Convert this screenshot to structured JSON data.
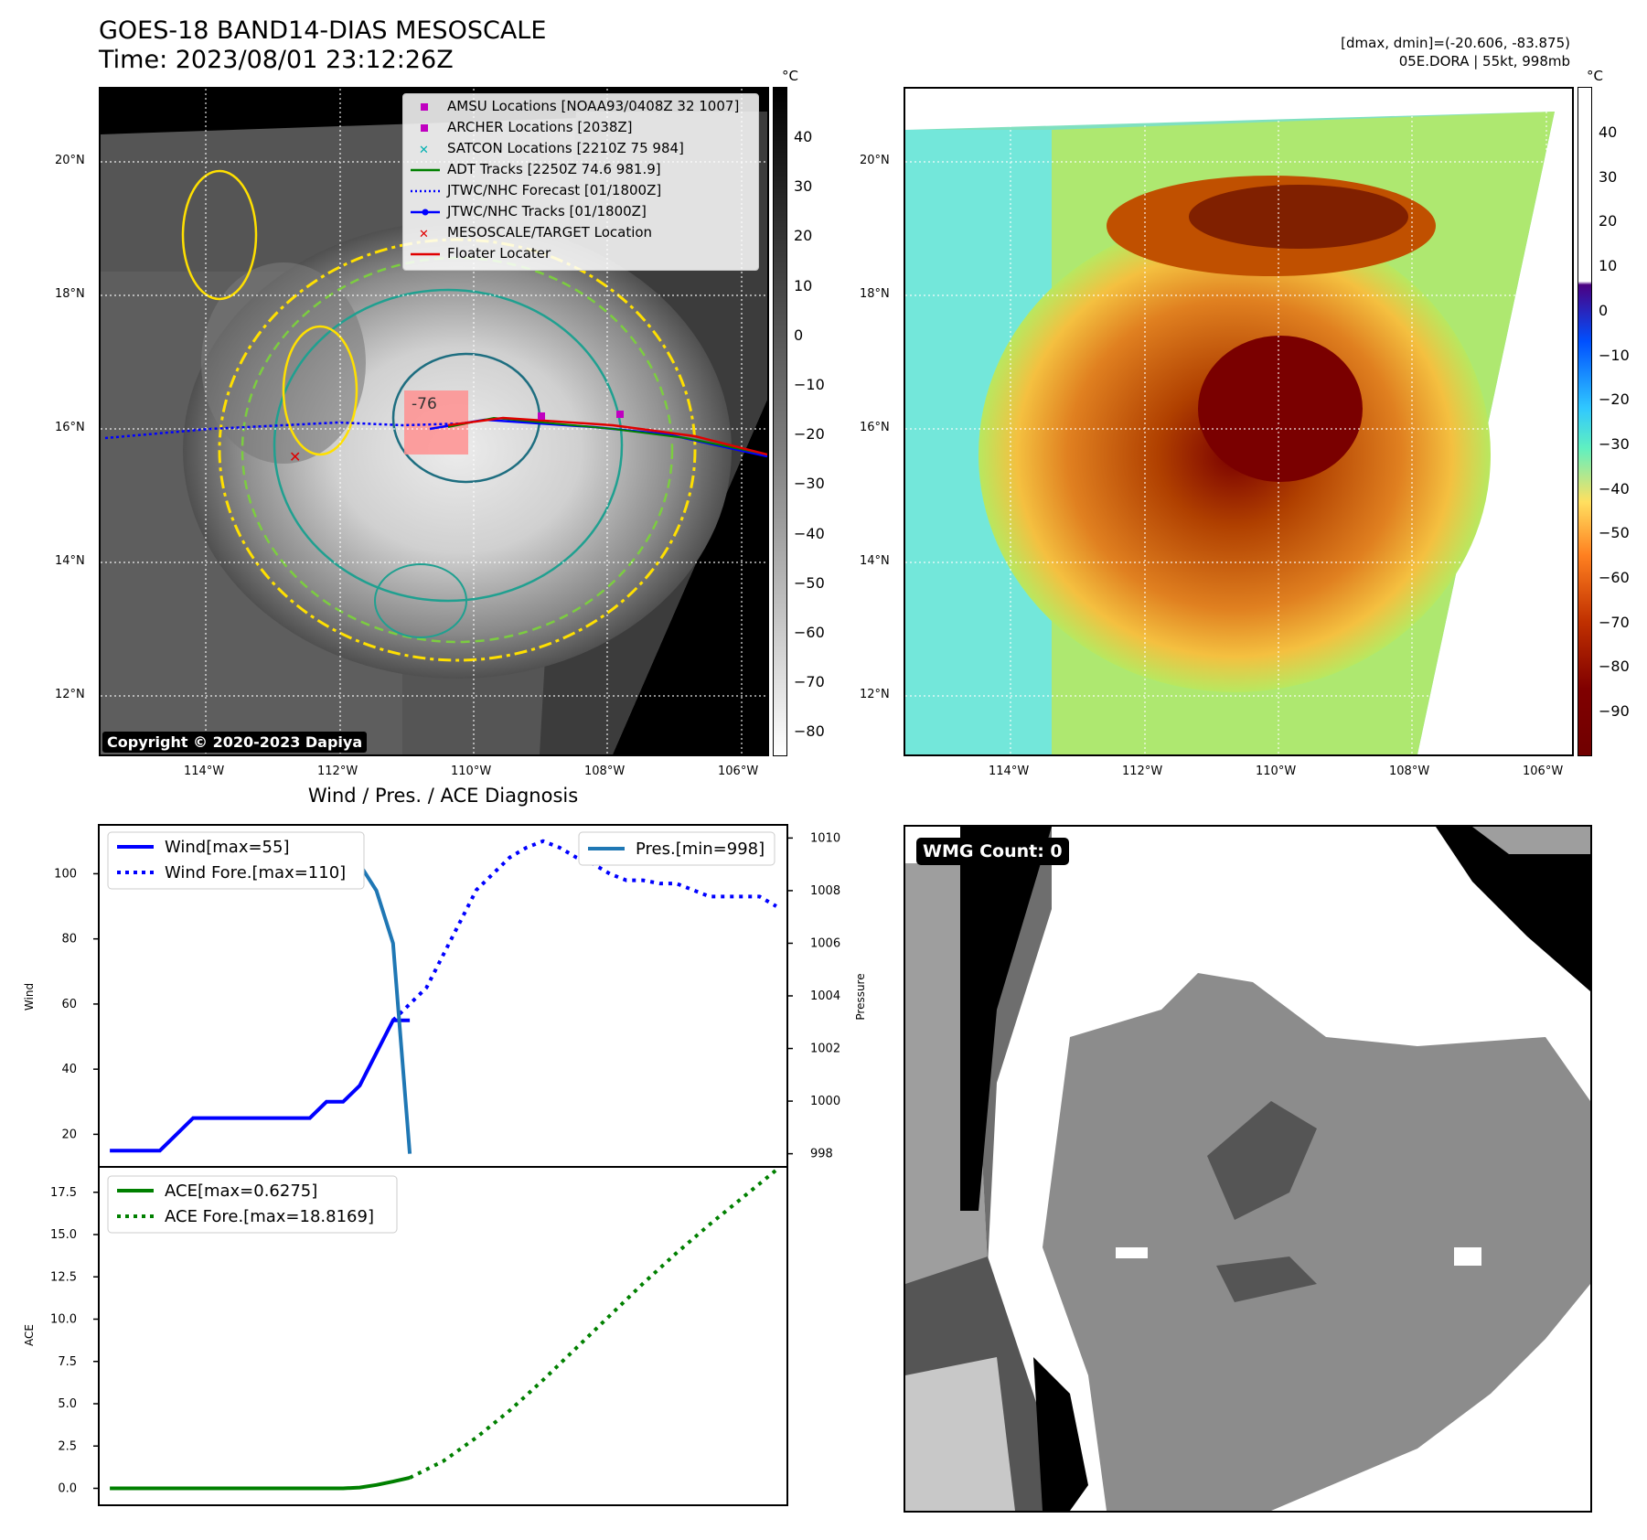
{
  "header": {
    "title_line1": "GOES-18 BAND14-DIAS MESOSCALE",
    "title_line2": "Time: 2023/08/01 23:12:26Z",
    "right_line1": "[dmax, dmin]=(-20.606, -83.875)",
    "right_line2": "05E.DORA | 55kt, 998mb"
  },
  "map_axes": {
    "lat_labels": [
      "20°N",
      "18°N",
      "16°N",
      "14°N",
      "12°N"
    ],
    "lon_labels": [
      "114°W",
      "112°W",
      "110°W",
      "108°W",
      "106°W"
    ],
    "contour_label": "-76"
  },
  "left_map": {
    "copyright": "Copyright © 2020-2023 Dapiya",
    "legend": [
      {
        "label": "AMSU Locations [NOAA93/0408Z 32 1007]",
        "color": "#c000c0",
        "marker": "square"
      },
      {
        "label": "ARCHER Locations [2038Z]",
        "color": "#c000c0",
        "marker": "square"
      },
      {
        "label": "SATCON Locations [2210Z 75 984]",
        "color": "#00b0b0",
        "marker": "x"
      },
      {
        "label": "ADT Tracks [2250Z 74.6 981.9]",
        "color": "#008000",
        "marker": "line"
      },
      {
        "label": "JTWC/NHC Forecast [01/1800Z]",
        "color": "#0000ff",
        "marker": "dotted"
      },
      {
        "label": "JTWC/NHC Tracks [01/1800Z]",
        "color": "#0000ff",
        "marker": "line-dot"
      },
      {
        "label": "MESOSCALE/TARGET Location",
        "color": "#e00000",
        "marker": "x"
      },
      {
        "label": "Floater Locater",
        "color": "#e00000",
        "marker": "line"
      }
    ]
  },
  "left_colorbar": {
    "unit": "°C",
    "ticks": [
      "40",
      "30",
      "20",
      "10",
      "0",
      "−10",
      "−20",
      "−30",
      "−40",
      "−50",
      "−60",
      "−70",
      "−80"
    ]
  },
  "right_colorbar": {
    "unit": "°C",
    "ticks": [
      "40",
      "30",
      "20",
      "10",
      "0",
      "−10",
      "−20",
      "−30",
      "−40",
      "−50",
      "−60",
      "−70",
      "−80",
      "−90"
    ]
  },
  "wmg": {
    "label": "WMG Count: 0"
  },
  "chart_data": {
    "type": "line",
    "title": "Wind / Pres. / ACE Diagnosis",
    "wind": {
      "ylabel": "Wind",
      "yticks": [
        "100",
        "80",
        "60",
        "40",
        "20"
      ],
      "ylim": [
        10,
        115
      ],
      "y2label": "Pressure",
      "y2ticks": [
        "1010",
        "1008",
        "1006",
        "1004",
        "1002",
        "1000",
        "998"
      ],
      "y2lim": [
        997.5,
        1010.5
      ],
      "series": [
        {
          "name": "Wind[max=55]",
          "style": "solid",
          "color": "#0000ff",
          "x": [
            0,
            3,
            6,
            9,
            12,
            15,
            18,
            21,
            24,
            27,
            30,
            33,
            36,
            39,
            42,
            45,
            48,
            51,
            54
          ],
          "values": [
            15,
            15,
            15,
            15,
            20,
            25,
            25,
            25,
            25,
            25,
            25,
            25,
            25,
            30,
            30,
            35,
            45,
            55,
            55
          ]
        },
        {
          "name": "Wind Fore.[max=110]",
          "style": "dotted",
          "color": "#0000ff",
          "x": [
            51,
            54,
            57,
            60,
            63,
            66,
            69,
            72,
            75,
            78,
            81,
            84,
            87,
            90,
            93,
            96,
            99,
            102,
            105,
            108,
            111,
            114,
            117,
            120
          ],
          "values": [
            55,
            60,
            65,
            75,
            85,
            95,
            100,
            105,
            108,
            110,
            108,
            105,
            103,
            100,
            98,
            98,
            97,
            97,
            95,
            93,
            93,
            93,
            93,
            90
          ]
        },
        {
          "name": "Pres.[min=998]",
          "style": "solid",
          "color": "#1f77b4",
          "x": [
            0,
            3,
            6,
            9,
            12,
            15,
            18,
            21,
            24,
            27,
            30,
            33,
            36,
            39,
            42,
            45,
            48,
            51,
            54
          ],
          "values": [
            1010,
            1010,
            1010,
            1010,
            1010,
            1009.5,
            1009.5,
            1009.5,
            1009,
            1009,
            1009,
            1009,
            1009,
            1009,
            1009,
            1009,
            1008,
            1006,
            998
          ]
        }
      ]
    },
    "ace": {
      "ylabel": "ACE",
      "yticks": [
        "17.5",
        "15.0",
        "12.5",
        "10.0",
        "7.5",
        "5.0",
        "2.5",
        "0.0"
      ],
      "ylim": [
        -1,
        19
      ],
      "series": [
        {
          "name": "ACE[max=0.6275]",
          "style": "solid",
          "color": "#008000",
          "x": [
            0,
            6,
            12,
            18,
            24,
            30,
            36,
            42,
            45,
            48,
            51,
            54
          ],
          "values": [
            0,
            0,
            0,
            0,
            0,
            0,
            0,
            0,
            0.05,
            0.2,
            0.4,
            0.6275
          ]
        },
        {
          "name": "ACE Fore.[max=18.8169]",
          "style": "dotted",
          "color": "#008000",
          "x": [
            54,
            60,
            66,
            72,
            78,
            84,
            90,
            96,
            102,
            108,
            114,
            120
          ],
          "values": [
            0.6275,
            1.6,
            3.0,
            4.6,
            6.4,
            8.3,
            10.2,
            12.1,
            13.9,
            15.6,
            17.2,
            18.8169
          ]
        }
      ],
      "xlim": [
        -2,
        122
      ]
    }
  }
}
